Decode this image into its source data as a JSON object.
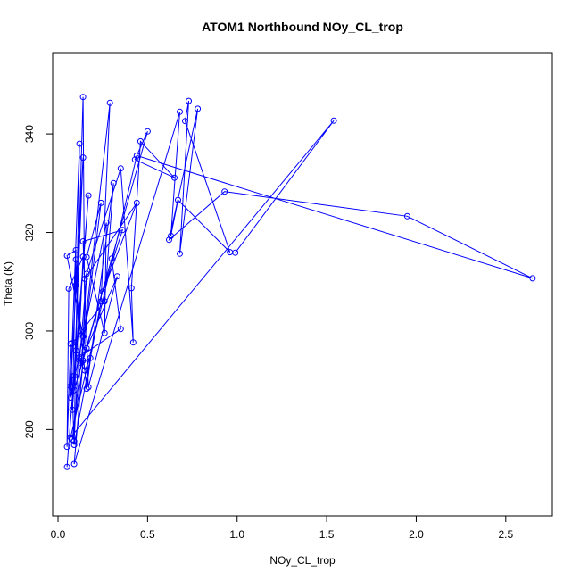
{
  "chart_data": {
    "type": "line",
    "title": "ATOM1 Northbound NOy_CL_trop",
    "xlabel": "NOy_CL_trop",
    "ylabel": "Theta (K)",
    "xlim": [
      -0.03,
      2.76
    ],
    "ylim": [
      262.5,
      356.5
    ],
    "xticks": [
      0.0,
      0.5,
      1.0,
      1.5,
      2.0,
      2.5
    ],
    "xtick_labels": [
      "0.0",
      "0.5",
      "1.0",
      "1.5",
      "2.0",
      "2.5"
    ],
    "yticks": [
      280,
      300,
      320,
      340
    ],
    "ytick_labels": [
      "280",
      "300",
      "320",
      "340"
    ],
    "grid": false,
    "legend": "none",
    "series": [
      {
        "color": "#0000ff",
        "marker": "open-circle",
        "points": [
          [
            0.05,
            272.4
          ],
          [
            0.1,
            296.0
          ],
          [
            0.14,
            347.5
          ],
          [
            0.15,
            296.1
          ],
          [
            0.08,
            278.0
          ],
          [
            0.29,
            346.3
          ],
          [
            0.24,
            306.0
          ],
          [
            0.09,
            276.9
          ],
          [
            0.07,
            297.4
          ],
          [
            0.05,
            276.5
          ],
          [
            0.06,
            308.6
          ],
          [
            0.14,
            315.1
          ],
          [
            0.09,
            277.6
          ],
          [
            0.12,
            338.0
          ],
          [
            0.07,
            288.8
          ],
          [
            0.14,
            335.2
          ],
          [
            0.09,
            290.9
          ],
          [
            0.17,
            327.5
          ],
          [
            0.08,
            284.0
          ],
          [
            0.1,
            316.4
          ],
          [
            0.05,
            315.3
          ],
          [
            0.14,
            298.9
          ],
          [
            0.16,
            311.6
          ],
          [
            0.12,
            294.0
          ],
          [
            0.15,
            292.0
          ],
          [
            0.18,
            294.5
          ],
          [
            0.13,
            293.5
          ],
          [
            0.24,
            326.0
          ],
          [
            0.16,
            315.0
          ],
          [
            0.26,
            299.6
          ],
          [
            0.27,
            322.0
          ],
          [
            0.07,
            286.5
          ],
          [
            0.08,
            297.5
          ],
          [
            0.26,
            306.0
          ],
          [
            0.31,
            330.0
          ],
          [
            0.16,
            288.3
          ],
          [
            0.1,
            309.3
          ],
          [
            0.1,
            314.5
          ],
          [
            0.12,
            294.7
          ],
          [
            0.35,
            300.4
          ],
          [
            0.3,
            314.7
          ],
          [
            0.09,
            288.0
          ],
          [
            0.16,
            296.5
          ],
          [
            0.33,
            311.1
          ],
          [
            0.17,
            288.6
          ],
          [
            0.14,
            318.2
          ],
          [
            0.36,
            320.5
          ],
          [
            0.25,
            308.0
          ],
          [
            0.44,
            326.0
          ],
          [
            0.15,
            310.6
          ],
          [
            0.35,
            333.0
          ],
          [
            0.42,
            297.7
          ],
          [
            0.41,
            308.7
          ],
          [
            0.46,
            338.5
          ],
          [
            0.65,
            331.1
          ],
          [
            0.43,
            334.8
          ],
          [
            0.5,
            340.5
          ],
          [
            0.14,
            294.0
          ],
          [
            0.09,
            273.0
          ],
          [
            0.68,
            344.5
          ],
          [
            0.63,
            319.3
          ],
          [
            0.67,
            326.6
          ],
          [
            0.96,
            316.0
          ],
          [
            0.71,
            342.6
          ],
          [
            0.73,
            346.7
          ],
          [
            0.68,
            315.7
          ],
          [
            0.78,
            345.1
          ],
          [
            0.62,
            318.5
          ],
          [
            0.93,
            328.3
          ],
          [
            1.95,
            323.3
          ],
          [
            2.65,
            310.7
          ],
          [
            0.44,
            335.6
          ],
          [
            0.07,
            278.4
          ],
          [
            1.54,
            342.7
          ],
          [
            0.99,
            315.9
          ]
        ]
      }
    ]
  }
}
